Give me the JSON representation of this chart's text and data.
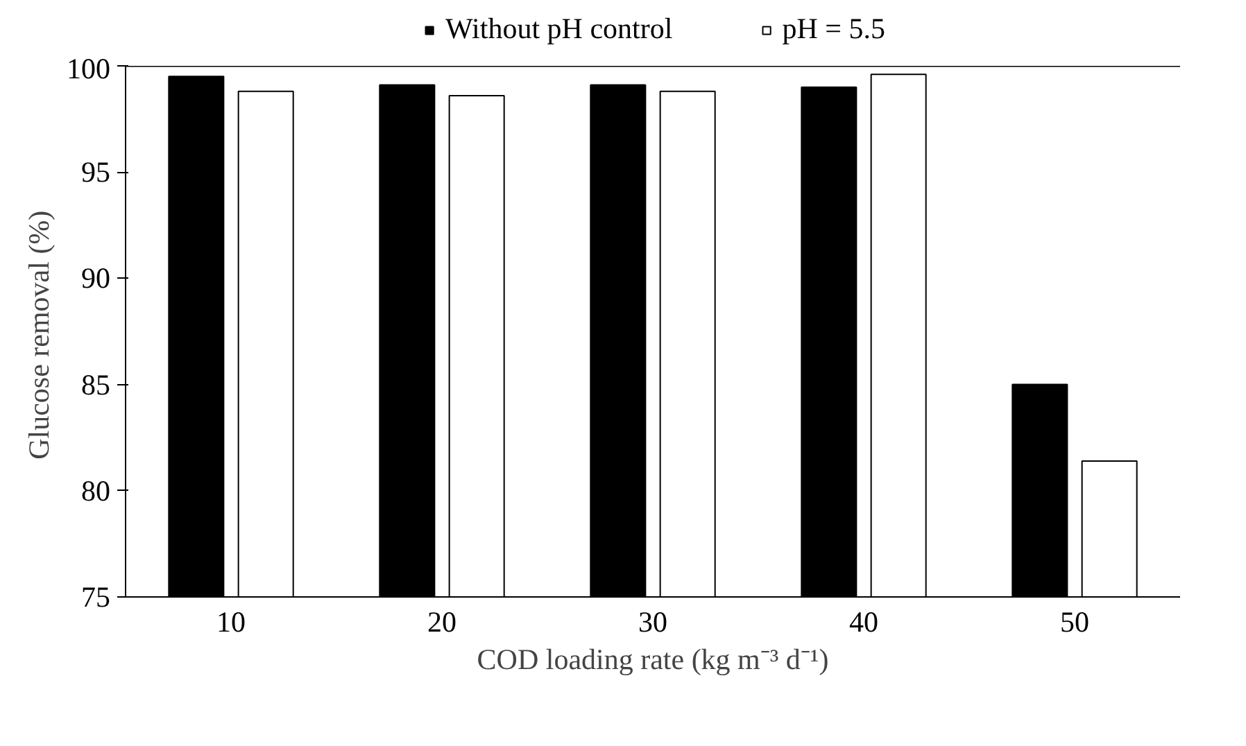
{
  "chart_data": {
    "type": "bar",
    "categories": [
      "10",
      "20",
      "30",
      "40",
      "50"
    ],
    "xlabel": "COD loading rate (kg m⁻³ d⁻¹)",
    "ylabel": "Glucose  removal (%)",
    "series": [
      {
        "name": "Without pH control",
        "color": "#000000",
        "values": [
          99.5,
          99.1,
          99.1,
          99.0,
          85.0
        ]
      },
      {
        "name": "pH = 5.5",
        "color": "#ffffff",
        "values": [
          98.8,
          98.6,
          98.8,
          99.6,
          81.4
        ]
      }
    ],
    "ylim": [
      75,
      100
    ],
    "yticks": [
      75,
      80,
      85,
      90,
      95,
      100
    ],
    "grid": false,
    "legend": "top"
  }
}
